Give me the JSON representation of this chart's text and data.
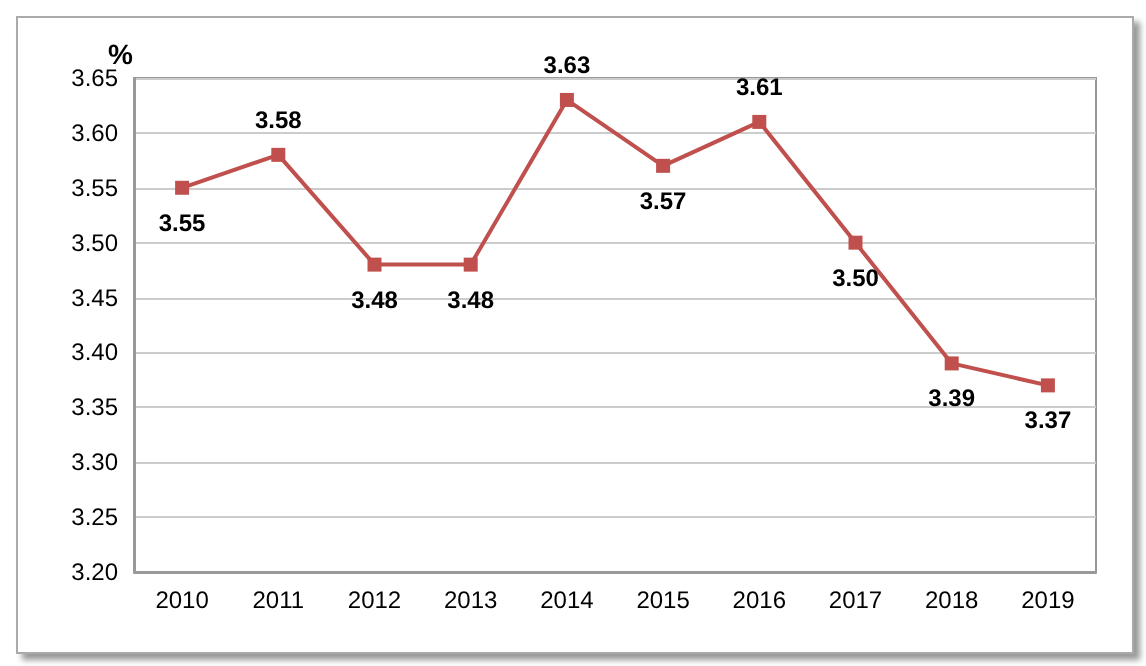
{
  "chart_data": {
    "type": "line",
    "ylabel": "%",
    "categories": [
      "2010",
      "2011",
      "2012",
      "2013",
      "2014",
      "2015",
      "2016",
      "2017",
      "2018",
      "2019"
    ],
    "series": [
      {
        "color": "#c0504d",
        "values": [
          3.55,
          3.58,
          3.48,
          3.48,
          3.63,
          3.57,
          3.61,
          3.5,
          3.39,
          3.37
        ],
        "value_labels": [
          "3.55",
          "3.58",
          "3.48",
          "3.48",
          "3.63",
          "3.57",
          "3.61",
          "3.50",
          "3.39",
          "3.37"
        ]
      }
    ],
    "ylim": [
      3.2,
      3.65
    ],
    "yticks": [
      {
        "value": 3.2,
        "label": "3.20"
      },
      {
        "value": 3.25,
        "label": "3.25"
      },
      {
        "value": 3.3,
        "label": "3.30"
      },
      {
        "value": 3.35,
        "label": "3.35"
      },
      {
        "value": 3.4,
        "label": "3.40"
      },
      {
        "value": 3.45,
        "label": "3.45"
      },
      {
        "value": 3.5,
        "label": "3.50"
      },
      {
        "value": 3.55,
        "label": "3.55"
      },
      {
        "value": 3.6,
        "label": "3.60"
      },
      {
        "value": 3.65,
        "label": "3.65"
      }
    ],
    "grid": "y",
    "marker": "square",
    "line_style": "solid"
  }
}
